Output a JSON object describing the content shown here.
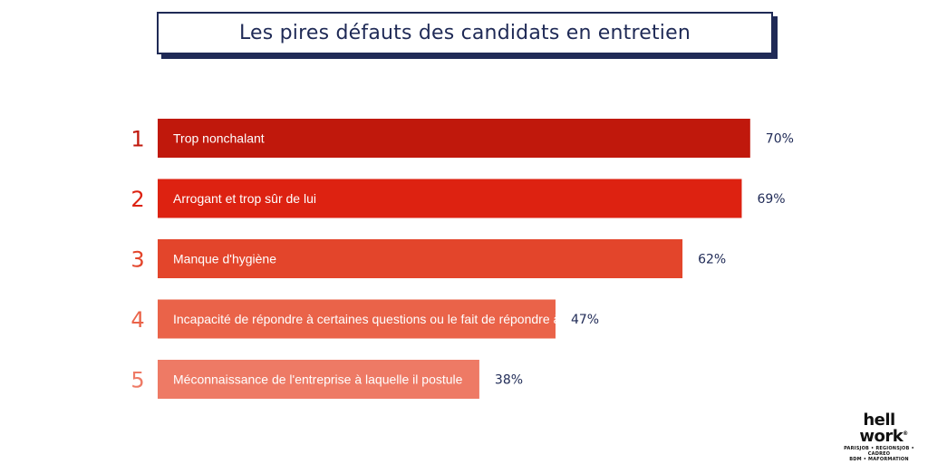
{
  "title": "Les pires défauts des candidats en entretien",
  "chart_data": {
    "type": "bar",
    "orientation": "horizontal",
    "categories": [
      "Trop nonchalant",
      "Arrogant et trop sûr de lui",
      "Manque d'hygiène",
      "Incapacité de répondre à certaines questions ou le fait de répondre à côté",
      "Méconnaissance de l'entreprise à laquelle il postule"
    ],
    "ranks": [
      "1",
      "2",
      "3",
      "4",
      "5"
    ],
    "values": [
      70,
      69,
      62,
      47,
      38
    ],
    "value_labels": [
      "70%",
      "69%",
      "62%",
      "47%",
      "38%"
    ],
    "unit": "%",
    "colors": [
      "#c0180c",
      "#dd2211",
      "#e3452b",
      "#ea6349",
      "#ee7a65"
    ],
    "xlim": [
      0,
      100
    ]
  },
  "logo": {
    "line1": "hell",
    "line2": "work",
    "registered": "®",
    "sub1": "PARISJOB • REGIONSJOB • CADREO",
    "sub2": "BDM • MAFORMATION"
  }
}
